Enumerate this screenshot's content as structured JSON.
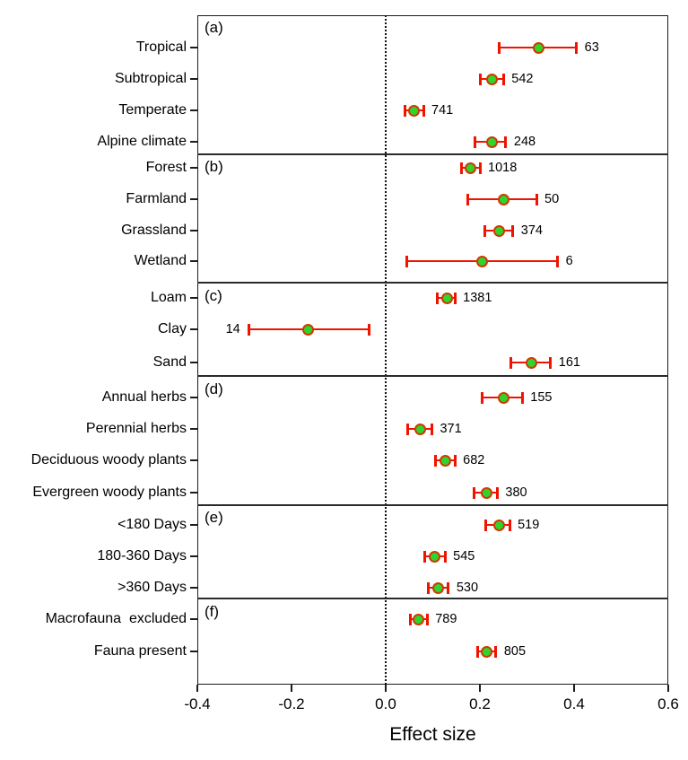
{
  "chart_data": {
    "type": "scatter",
    "subtype": "forest-plot-dot-with-error-bars",
    "xlabel": "Effect size",
    "x_axis": {
      "min": -0.4,
      "max": 0.6,
      "ticks": [
        -0.4,
        -0.2,
        0.0,
        0.2,
        0.4,
        0.6
      ],
      "tick_labels": [
        "-0.4",
        "-0.2",
        "0.0",
        "0.2",
        "0.4",
        "0.6"
      ],
      "zero_reference_line": 0.0,
      "grid": "off"
    },
    "legend": "none",
    "colors": {
      "error_bar": "#f01400",
      "marker_fill": "#2ed52e",
      "marker_border": "#cf3a00",
      "axis": "#1c1c1c",
      "background": "#ffffff"
    },
    "panels": [
      {
        "letter": "(a)",
        "rows": [
          {
            "label": "Tropical",
            "mean": 0.325,
            "ci_low": 0.24,
            "ci_high": 0.405,
            "n": "63",
            "n_side": "right"
          },
          {
            "label": "Subtropical",
            "mean": 0.225,
            "ci_low": 0.2,
            "ci_high": 0.25,
            "n": "542",
            "n_side": "right"
          },
          {
            "label": "Temperate",
            "mean": 0.06,
            "ci_low": 0.04,
            "ci_high": 0.08,
            "n": "741",
            "n_side": "right"
          },
          {
            "label": "Alpine climate",
            "mean": 0.225,
            "ci_low": 0.19,
            "ci_high": 0.255,
            "n": "248",
            "n_side": "right"
          }
        ]
      },
      {
        "letter": "(b)",
        "rows": [
          {
            "label": "Forest",
            "mean": 0.18,
            "ci_low": 0.16,
            "ci_high": 0.2,
            "n": "1018",
            "n_side": "right"
          },
          {
            "label": "Farmland",
            "mean": 0.25,
            "ci_low": 0.175,
            "ci_high": 0.32,
            "n": "50",
            "n_side": "right"
          },
          {
            "label": "Grassland",
            "mean": 0.24,
            "ci_low": 0.21,
            "ci_high": 0.27,
            "n": "374",
            "n_side": "right"
          },
          {
            "label": "Wetland",
            "mean": 0.205,
            "ci_low": 0.045,
            "ci_high": 0.365,
            "n": "6",
            "n_side": "right"
          }
        ]
      },
      {
        "letter": "(c)",
        "rows": [
          {
            "label": "Loam",
            "mean": 0.13,
            "ci_low": 0.11,
            "ci_high": 0.147,
            "n": "1381",
            "n_side": "right"
          },
          {
            "label": "Clay",
            "mean": -0.165,
            "ci_low": -0.29,
            "ci_high": -0.035,
            "n": "14",
            "n_side": "left"
          },
          {
            "label": "Sand",
            "mean": 0.31,
            "ci_low": 0.265,
            "ci_high": 0.35,
            "n": "161",
            "n_side": "right"
          }
        ]
      },
      {
        "letter": "(d)",
        "rows": [
          {
            "label": "Annual herbs",
            "mean": 0.25,
            "ci_low": 0.205,
            "ci_high": 0.29,
            "n": "155",
            "n_side": "right"
          },
          {
            "label": "Perennial herbs",
            "mean": 0.073,
            "ci_low": 0.047,
            "ci_high": 0.098,
            "n": "371",
            "n_side": "right"
          },
          {
            "label": "Deciduous woody plants",
            "mean": 0.127,
            "ci_low": 0.105,
            "ci_high": 0.147,
            "n": "682",
            "n_side": "right"
          },
          {
            "label": "Evergreen woody plants",
            "mean": 0.215,
            "ci_low": 0.187,
            "ci_high": 0.237,
            "n": "380",
            "n_side": "right"
          }
        ]
      },
      {
        "letter": "(e)",
        "rows": [
          {
            "label": "<180 Days",
            "mean": 0.24,
            "ci_low": 0.213,
            "ci_high": 0.263,
            "n": "519",
            "n_side": "right"
          },
          {
            "label": "180-360 Days",
            "mean": 0.104,
            "ci_low": 0.083,
            "ci_high": 0.126,
            "n": "545",
            "n_side": "right"
          },
          {
            "label": ">360 Days",
            "mean": 0.112,
            "ci_low": 0.09,
            "ci_high": 0.133,
            "n": "530",
            "n_side": "right"
          }
        ]
      },
      {
        "letter": "(f)",
        "rows": [
          {
            "label": "Macrofauna  excluded",
            "mean": 0.07,
            "ci_low": 0.052,
            "ci_high": 0.088,
            "n": "789",
            "n_side": "right"
          },
          {
            "label": "Fauna present",
            "mean": 0.215,
            "ci_low": 0.196,
            "ci_high": 0.234,
            "n": "805",
            "n_side": "right"
          }
        ]
      }
    ]
  }
}
